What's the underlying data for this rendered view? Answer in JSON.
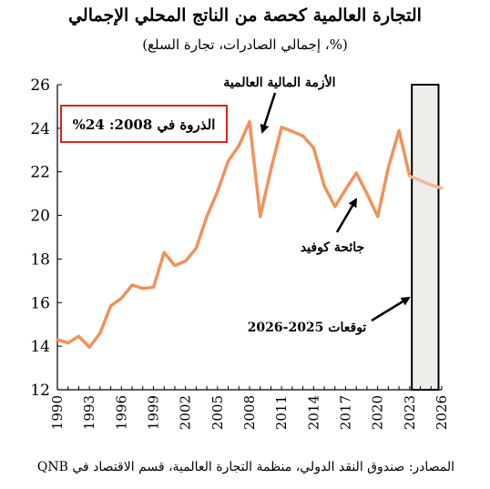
{
  "title": "التجارة العالمية كحصة من الناتج المحلي الإجمالي",
  "subtitle": "(%، إجمالي الصادرات، تجارة السلع)",
  "source": "المصادر: صندوق النقد الدولي، منظمة التجارة العالمية، قسم الاقتصاد في QNB",
  "chart_data": {
    "type": "line",
    "xlim": [
      1990,
      2026
    ],
    "ylim": [
      12,
      26
    ],
    "y_ticks": [
      12,
      14,
      16,
      18,
      20,
      22,
      24,
      26
    ],
    "x_ticks": [
      1990,
      1993,
      1996,
      1999,
      2002,
      2005,
      2008,
      2011,
      2014,
      2017,
      2020,
      2023,
      2026
    ],
    "series": [
      {
        "color": "#f0925a",
        "x": [
          1990,
          1991,
          1992,
          1993,
          1994,
          1995,
          1996,
          1997,
          1998,
          1999,
          2000,
          2001,
          2002,
          2003,
          2004,
          2005,
          2006,
          2007,
          2008,
          2009,
          2010,
          2011,
          2012,
          2013,
          2014,
          2015,
          2016,
          2017,
          2018,
          2019,
          2020,
          2021,
          2022,
          2023
        ],
        "values": [
          14.3,
          14.15,
          14.45,
          13.95,
          14.6,
          15.85,
          16.2,
          16.8,
          16.65,
          16.7,
          18.3,
          17.7,
          17.9,
          18.5,
          19.95,
          21.1,
          22.5,
          23.2,
          24.3,
          19.95,
          22.1,
          24.05,
          23.85,
          23.65,
          23.1,
          21.35,
          20.4,
          21.2,
          21.95,
          21.0,
          19.95,
          22.2,
          23.9,
          21.8
        ]
      },
      {
        "color": "#f3b79a",
        "x": [
          2023,
          2024,
          2025,
          2026
        ],
        "values": [
          21.8,
          21.6,
          21.4,
          21.25
        ]
      }
    ],
    "forecast_band": [
      2023.2,
      2025.7
    ],
    "annotations": {
      "peak_box": "الذروة في 2008: 24%",
      "crisis": "الأزمة المالية العالمية",
      "covid": "جائحة كوفيد",
      "forecast": "توقعات 2025-2026"
    },
    "grid": false,
    "legend": "none",
    "colors": {
      "box_border": "#e02020",
      "band_fill": "#efedea"
    }
  }
}
